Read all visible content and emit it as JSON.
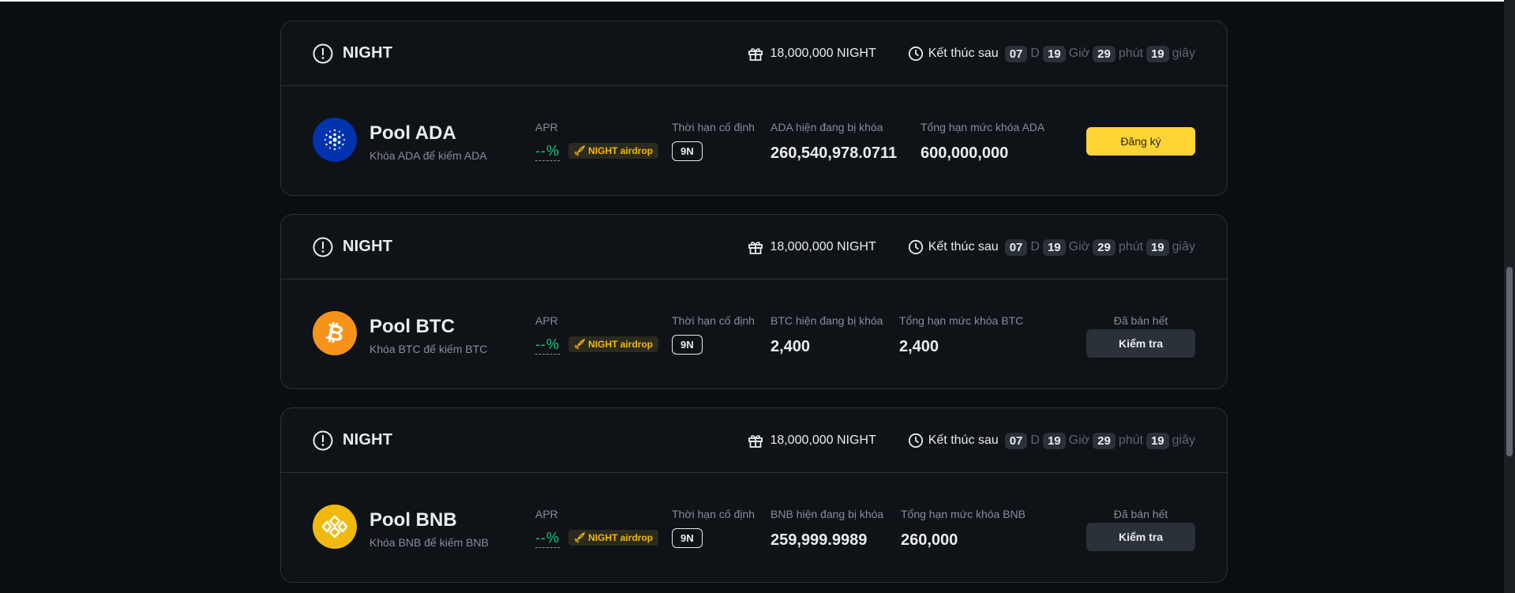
{
  "pools": [
    {
      "token": "NIGHT",
      "reward": "18,000,000 NIGHT",
      "countdown": {
        "label": "Kết thúc sau",
        "days": "07",
        "days_unit": "D",
        "hours": "19",
        "hours_unit": "Giờ",
        "minutes": "29",
        "minutes_unit": "phút",
        "seconds": "19",
        "seconds_unit": "giây"
      },
      "title": "Pool ADA",
      "subtitle": "Khóa ADA để kiếm ADA",
      "apr_label": "APR",
      "apr_value": "--%",
      "airdrop": "NIGHT airdrop",
      "term_label": "Thời hạn cố định",
      "term_value": "9N",
      "locked_label": "ADA hiện đang bị khóa",
      "locked_value": "260,540,978.0711",
      "cap_label": "Tổng hạn mức khóa ADA",
      "cap_value": "600,000,000",
      "button": "Đăng ký",
      "coin_color": "#0033ad"
    },
    {
      "token": "NIGHT",
      "reward": "18,000,000 NIGHT",
      "countdown": {
        "label": "Kết thúc sau",
        "days": "07",
        "days_unit": "D",
        "hours": "19",
        "hours_unit": "Giờ",
        "minutes": "29",
        "minutes_unit": "phút",
        "seconds": "19",
        "seconds_unit": "giây"
      },
      "title": "Pool BTC",
      "subtitle": "Khóa BTC để kiếm BTC",
      "apr_label": "APR",
      "apr_value": "--%",
      "airdrop": "NIGHT airdrop",
      "term_label": "Thời hạn cố định",
      "term_value": "9N",
      "locked_label": "BTC hiện đang bị khóa",
      "locked_value": "2,400",
      "cap_label": "Tổng hạn mức khóa BTC",
      "cap_value": "2,400",
      "status": "Đã bán hết",
      "button": "Kiểm tra",
      "coin_color": "#f7931a"
    },
    {
      "token": "NIGHT",
      "reward": "18,000,000 NIGHT",
      "countdown": {
        "label": "Kết thúc sau",
        "days": "07",
        "days_unit": "D",
        "hours": "19",
        "hours_unit": "Giờ",
        "minutes": "29",
        "minutes_unit": "phút",
        "seconds": "19",
        "seconds_unit": "giây"
      },
      "title": "Pool BNB",
      "subtitle": "Khóa BNB để kiếm BNB",
      "apr_label": "APR",
      "apr_value": "--%",
      "airdrop": "NIGHT airdrop",
      "term_label": "Thời hạn cố định",
      "term_value": "9N",
      "locked_label": "BNB hiện đang bị khóa",
      "locked_value": "259,999.9989",
      "cap_label": "Tổng hạn mức khóa BNB",
      "cap_value": "260,000",
      "status": "Đã bán hết",
      "button": "Kiểm tra",
      "coin_color": "#f0b90b"
    }
  ],
  "colors": {
    "accent": "#fcd535",
    "positive": "#0ecb81",
    "background": "#0b0e11"
  }
}
